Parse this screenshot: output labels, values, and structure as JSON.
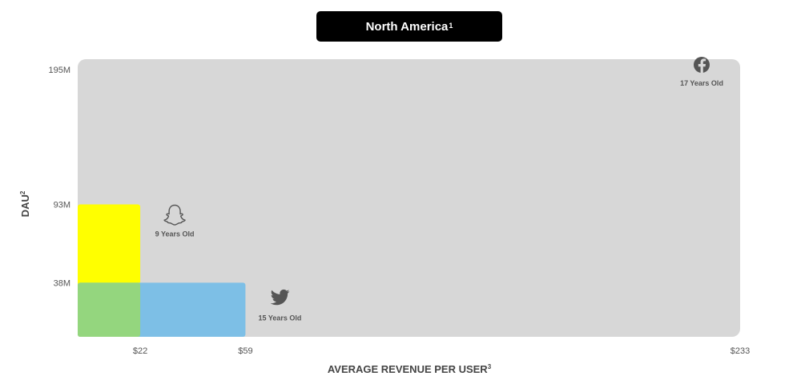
{
  "region": {
    "title": "North America",
    "title_sup": "1"
  },
  "chart_data": {
    "type": "area",
    "title": "North America",
    "xlabel": "AVERAGE REVENUE PER USER",
    "xlabel_sup": "3",
    "ylabel": "DAU",
    "ylabel_sup": "2",
    "xlim": [
      0,
      233
    ],
    "ylim": [
      0,
      195
    ],
    "x_ticks": [
      {
        "value": 22,
        "label": "$22"
      },
      {
        "value": 59,
        "label": "$59"
      },
      {
        "value": 233,
        "label": "$233"
      }
    ],
    "y_ticks": [
      {
        "value": 38,
        "label": "38M"
      },
      {
        "value": 93,
        "label": "93M"
      },
      {
        "value": 195,
        "label": "195M"
      }
    ],
    "series": [
      {
        "arpu": 233,
        "dau": 195,
        "icon": "facebook-icon",
        "age": "17 Years Old",
        "color": "#d7d7d7"
      },
      {
        "arpu": 22,
        "dau": 93,
        "icon": "snapchat-ghost-icon",
        "age": "9 Years Old",
        "color": "#ffff00"
      },
      {
        "arpu": 59,
        "dau": 38,
        "icon": "twitter-bird-icon",
        "age": "15 Years Old",
        "color": "#7dbfe6"
      }
    ],
    "overlap_color": "#94d67e"
  }
}
